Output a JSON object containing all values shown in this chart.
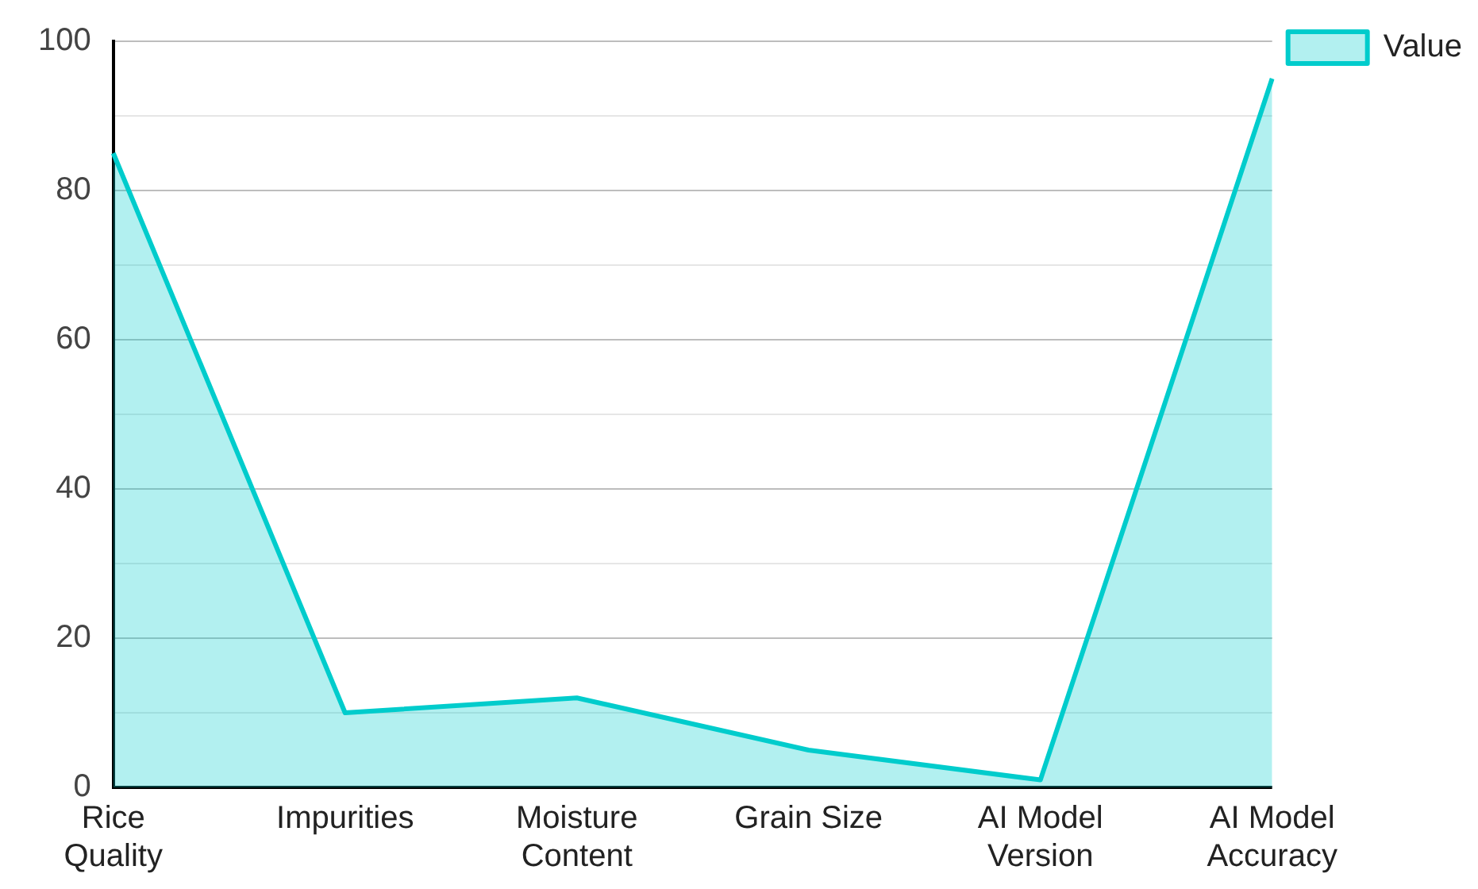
{
  "chart_data": {
    "type": "area",
    "categories": [
      "Rice Quality",
      "Impurities",
      "Moisture Content",
      "Grain Size",
      "AI Model Version",
      "AI Model Accuracy"
    ],
    "series": [
      {
        "name": "Value",
        "color": "#00cccc",
        "values": [
          85,
          10,
          12,
          5,
          1,
          95
        ]
      }
    ],
    "ylim": [
      0,
      100
    ],
    "yticks": [
      0,
      {
        "value": 10,
        "label": null
      },
      20,
      {
        "value": 30,
        "label": null
      },
      40,
      {
        "value": 50,
        "label": null
      },
      60,
      {
        "value": 70,
        "label": null
      },
      80,
      {
        "value": 90,
        "label": null
      },
      100
    ],
    "grid": "y",
    "legend": "top right"
  }
}
